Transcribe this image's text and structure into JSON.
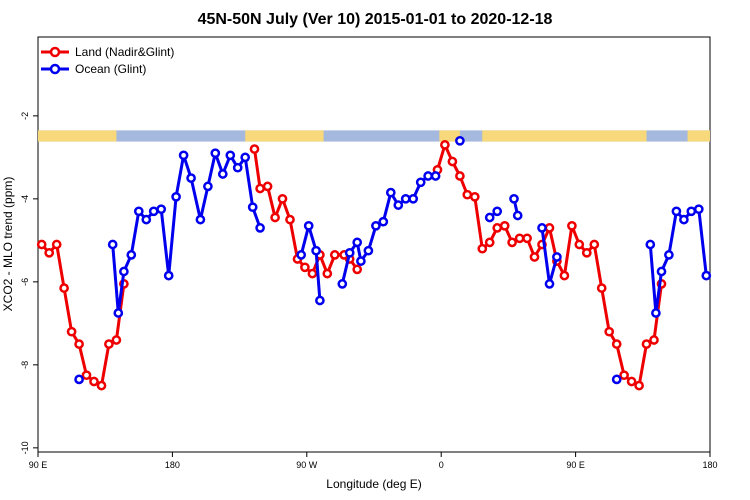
{
  "chart_data": {
    "type": "line",
    "title": "45N-50N July (Ver 10)   2015-01-01 to 2020-12-18",
    "xlabel": "Longitude (deg E)",
    "ylabel": "XCO2 - MLO trend (ppm)",
    "x_ticks": [
      "90 E",
      "180",
      "90 W",
      "0",
      "90 E",
      "180"
    ],
    "y_ticks": [
      "-10",
      "-8",
      "-6",
      "-4",
      "-2"
    ],
    "xlim": [
      0,
      360
    ],
    "ylim": [
      -10.1,
      -0.1
    ],
    "x_tick_values": [
      0,
      72,
      144,
      216,
      288,
      360
    ],
    "y_tick_values": [
      -10,
      -8,
      -6,
      -4,
      -2
    ],
    "grid": false,
    "legend_position": "top-left",
    "land_ocean_band": {
      "y_range": [
        -2.35,
        -2.62
      ],
      "land_color": "#f7d87a",
      "ocean_color": "#a5b9de",
      "land_segments": [
        [
          0,
          42
        ],
        [
          111,
          153
        ],
        [
          215,
          226
        ],
        [
          238,
          326
        ],
        [
          348,
          360
        ]
      ]
    },
    "series": [
      {
        "name": "Land (Nadir&Glint)",
        "color": "#ee0000",
        "points": [
          [
            2,
            -5.1
          ],
          [
            6,
            -5.3
          ],
          [
            10,
            -5.1
          ],
          [
            14,
            -6.15
          ],
          [
            18,
            -7.2
          ],
          [
            22,
            -7.5
          ],
          [
            26,
            -8.25
          ],
          [
            30,
            -8.4
          ],
          [
            34,
            -8.5
          ],
          [
            38,
            -7.5
          ],
          [
            42,
            -7.4
          ],
          [
            46,
            -6.05
          ],
          null,
          [
            116,
            -2.8
          ],
          [
            119,
            -3.75
          ],
          [
            123,
            -3.7
          ],
          [
            127,
            -4.45
          ],
          [
            131,
            -4.0
          ],
          [
            135,
            -4.5
          ],
          [
            139,
            -5.45
          ],
          [
            143,
            -5.65
          ],
          [
            147,
            -5.8
          ],
          [
            151,
            -5.35
          ],
          [
            155,
            -5.8
          ],
          [
            159,
            -5.35
          ],
          [
            164,
            -5.35
          ],
          [
            167,
            -5.45
          ],
          [
            171,
            -5.7
          ],
          null,
          [
            214,
            -3.3
          ],
          [
            218,
            -2.7
          ],
          [
            222,
            -3.1
          ],
          [
            226,
            -3.45
          ],
          [
            230,
            -3.9
          ],
          [
            234,
            -3.95
          ],
          [
            238,
            -5.2
          ],
          [
            242,
            -5.05
          ],
          [
            246,
            -4.7
          ],
          [
            250,
            -4.65
          ],
          [
            254,
            -5.05
          ],
          [
            258,
            -4.95
          ],
          [
            262,
            -4.95
          ],
          [
            266,
            -5.4
          ],
          [
            270,
            -5.1
          ],
          [
            274,
            -4.7
          ],
          [
            278,
            -5.5
          ],
          [
            282,
            -5.85
          ],
          [
            286,
            -4.65
          ],
          [
            290,
            -5.1
          ],
          [
            294,
            -5.3
          ],
          [
            298,
            -5.1
          ],
          [
            302,
            -6.15
          ],
          [
            306,
            -7.2
          ],
          [
            310,
            -7.5
          ],
          [
            314,
            -8.25
          ],
          [
            318,
            -8.4
          ],
          [
            322,
            -8.5
          ],
          [
            326,
            -7.5
          ],
          [
            330,
            -7.4
          ],
          [
            334,
            -6.05
          ]
        ]
      },
      {
        "name": "Ocean (Glint)",
        "color": "#0000ee",
        "points": [
          [
            22,
            -8.35
          ],
          null,
          [
            40,
            -5.1
          ],
          [
            43,
            -6.75
          ],
          [
            46,
            -5.75
          ],
          [
            50,
            -5.35
          ],
          [
            54,
            -4.3
          ],
          [
            58,
            -4.5
          ],
          [
            62,
            -4.3
          ],
          [
            66,
            -4.25
          ],
          [
            70,
            -5.85
          ],
          [
            74,
            -3.95
          ],
          [
            78,
            -2.95
          ],
          [
            82,
            -3.5
          ],
          [
            87,
            -4.5
          ],
          [
            91,
            -3.7
          ],
          [
            95,
            -2.9
          ],
          [
            99,
            -3.4
          ],
          [
            103,
            -2.95
          ],
          [
            107,
            -3.25
          ],
          [
            111,
            -3.0
          ],
          [
            115,
            -4.2
          ],
          [
            119,
            -4.7
          ],
          null,
          [
            141,
            -5.35
          ],
          [
            145,
            -4.65
          ],
          [
            149,
            -5.25
          ],
          [
            151,
            -6.45
          ],
          null,
          [
            163,
            -6.05
          ],
          [
            167,
            -5.3
          ],
          [
            171,
            -5.05
          ],
          [
            173,
            -5.5
          ],
          [
            177,
            -5.25
          ],
          [
            181,
            -4.65
          ],
          [
            185,
            -4.55
          ],
          [
            189,
            -3.85
          ],
          [
            193,
            -4.15
          ],
          [
            197,
            -4.0
          ],
          [
            201,
            -4.0
          ],
          [
            205,
            -3.6
          ],
          [
            209,
            -3.45
          ],
          [
            213,
            -3.45
          ],
          null,
          [
            226,
            -2.6
          ],
          null,
          [
            242,
            -4.45
          ],
          [
            246,
            -4.3
          ],
          null,
          [
            255,
            -4.0
          ],
          [
            257,
            -4.4
          ],
          null,
          [
            270,
            -4.7
          ],
          [
            274,
            -6.05
          ],
          [
            278,
            -5.4
          ],
          null,
          [
            310,
            -8.35
          ],
          null,
          [
            328,
            -5.1
          ],
          [
            331,
            -6.75
          ],
          [
            334,
            -5.75
          ],
          [
            338,
            -5.35
          ],
          [
            342,
            -4.3
          ],
          [
            346,
            -4.5
          ],
          [
            350,
            -4.3
          ],
          [
            354,
            -4.25
          ],
          [
            358,
            -5.85
          ]
        ]
      }
    ]
  }
}
